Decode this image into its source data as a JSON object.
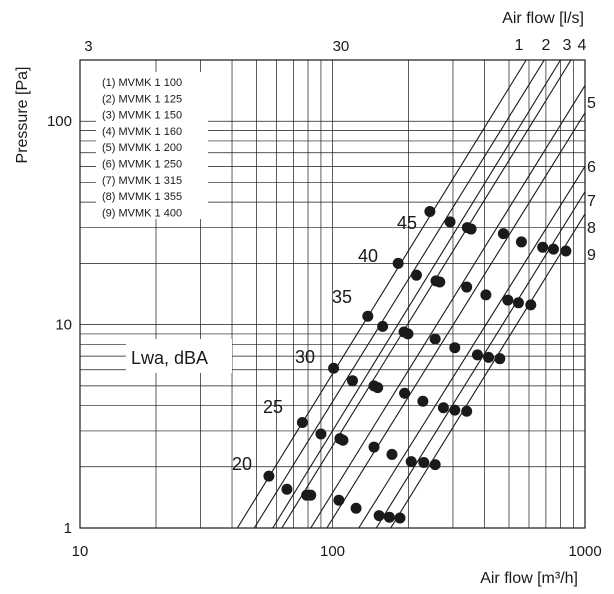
{
  "chart_data": {
    "type": "line",
    "xscale": "log",
    "yscale": "log",
    "xlim": [
      10,
      1000
    ],
    "ylim": [
      1,
      200
    ],
    "xlabel": "Air flow [m³/h]",
    "ylabel": "Pressure [Pa]",
    "x2label": "Air flow [l/s]",
    "x_ticks": [
      10,
      100,
      1000
    ],
    "y_ticks": [
      1,
      10,
      100
    ],
    "x2_ticks": [
      3,
      30
    ],
    "grid": true,
    "legend": [
      "(1) MVMK 1 100",
      "(2) MVMK 1 125",
      "(3) MVMK 1 150",
      "(4) MVMK 1 160",
      "(5) MVMK 1 200",
      "(6) MVMK 1 250",
      "(7) MVMK 1 315",
      "(8) MVMK 1 355",
      "(9) MVMK 1 400"
    ],
    "series": [
      {
        "name": "1",
        "x": [
          42,
          585
        ],
        "y": [
          1,
          200
        ]
      },
      {
        "name": "2",
        "x": [
          49,
          690
        ],
        "y": [
          1,
          200
        ]
      },
      {
        "name": "3",
        "x": [
          58,
          800
        ],
        "y": [
          1,
          200
        ]
      },
      {
        "name": "4",
        "x": [
          63,
          880
        ],
        "y": [
          1,
          200
        ]
      },
      {
        "name": "5",
        "x": [
          82,
          1000
        ],
        "y": [
          1,
          150
        ]
      },
      {
        "name": "6",
        "x": [
          95,
          1000
        ],
        "y": [
          1,
          110
        ]
      },
      {
        "name": "7",
        "x": [
          127,
          1000
        ],
        "y": [
          1,
          60
        ]
      },
      {
        "name": "8",
        "x": [
          149,
          1000
        ],
        "y": [
          1,
          45
        ]
      },
      {
        "name": "9",
        "x": [
          170,
          1000
        ],
        "y": [
          1,
          35
        ]
      }
    ],
    "curve_labels": [
      "1",
      "2",
      "3",
      "4",
      "5",
      "6",
      "7",
      "8",
      "9"
    ],
    "sound_levels": {
      "title": "Lwa, dBA",
      "labels": [
        "20",
        "25",
        "30",
        "35",
        "40",
        "45"
      ],
      "points": [
        {
          "x": 56,
          "y": 1.8
        },
        {
          "x": 66,
          "y": 1.55
        },
        {
          "x": 79,
          "y": 1.45
        },
        {
          "x": 82,
          "y": 1.45
        },
        {
          "x": 106,
          "y": 1.37
        },
        {
          "x": 124,
          "y": 1.25
        },
        {
          "x": 153,
          "y": 1.15
        },
        {
          "x": 168,
          "y": 1.13
        },
        {
          "x": 185,
          "y": 1.12
        },
        {
          "x": 76,
          "y": 3.3
        },
        {
          "x": 90,
          "y": 2.9
        },
        {
          "x": 107,
          "y": 2.75
        },
        {
          "x": 110,
          "y": 2.7
        },
        {
          "x": 146,
          "y": 2.5
        },
        {
          "x": 172,
          "y": 2.3
        },
        {
          "x": 205,
          "y": 2.12
        },
        {
          "x": 230,
          "y": 2.1
        },
        {
          "x": 255,
          "y": 2.05
        },
        {
          "x": 101,
          "y": 6.1
        },
        {
          "x": 120,
          "y": 5.3
        },
        {
          "x": 146,
          "y": 5.0
        },
        {
          "x": 151,
          "y": 4.9
        },
        {
          "x": 193,
          "y": 4.6
        },
        {
          "x": 228,
          "y": 4.2
        },
        {
          "x": 275,
          "y": 3.9
        },
        {
          "x": 305,
          "y": 3.8
        },
        {
          "x": 340,
          "y": 3.75
        },
        {
          "x": 138,
          "y": 11
        },
        {
          "x": 158,
          "y": 9.8
        },
        {
          "x": 192,
          "y": 9.2
        },
        {
          "x": 199,
          "y": 9.0
        },
        {
          "x": 255,
          "y": 8.5
        },
        {
          "x": 305,
          "y": 7.7
        },
        {
          "x": 375,
          "y": 7.1
        },
        {
          "x": 415,
          "y": 6.9
        },
        {
          "x": 460,
          "y": 6.8
        },
        {
          "x": 182,
          "y": 20
        },
        {
          "x": 215,
          "y": 17.5
        },
        {
          "x": 257,
          "y": 16.4
        },
        {
          "x": 266,
          "y": 16.2
        },
        {
          "x": 340,
          "y": 15.3
        },
        {
          "x": 405,
          "y": 14
        },
        {
          "x": 495,
          "y": 13.2
        },
        {
          "x": 545,
          "y": 12.8
        },
        {
          "x": 610,
          "y": 12.5
        },
        {
          "x": 243,
          "y": 36
        },
        {
          "x": 292,
          "y": 32
        },
        {
          "x": 342,
          "y": 30
        },
        {
          "x": 354,
          "y": 29.5
        },
        {
          "x": 475,
          "y": 28
        },
        {
          "x": 560,
          "y": 25.5
        },
        {
          "x": 680,
          "y": 24
        },
        {
          "x": 750,
          "y": 23.5
        },
        {
          "x": 840,
          "y": 23
        }
      ]
    }
  }
}
